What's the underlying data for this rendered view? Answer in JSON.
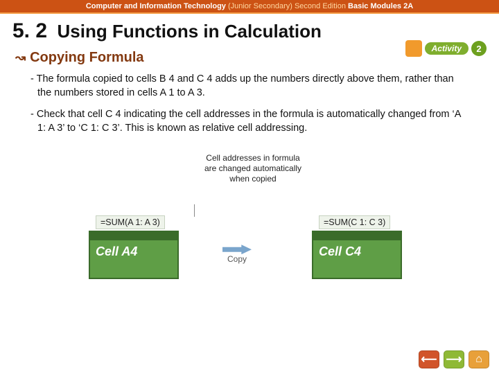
{
  "topbar": {
    "subject": "Computer and Information Technology",
    "level": "(Junior Secondary)",
    "edition": "Second Edition",
    "module": "Basic Modules 2A"
  },
  "section": {
    "number": "5. 2",
    "title": "Using Functions in Calculation"
  },
  "activity": {
    "label": "Activity",
    "number": "2"
  },
  "subheading": {
    "arrow": "↝",
    "text": "Copying Formula"
  },
  "paragraphs": {
    "p1": "- The formula copied to cells B 4 and C 4 adds up the numbers directly above them, rather than the numbers stored in cells A 1 to A 3.",
    "p2": "- Check that cell C 4 indicating the cell addresses in the formula is automatically changed from ‘A 1: A 3’ to ‘C 1: C 3’. This is known as relative cell addressing."
  },
  "diagram": {
    "callout": "Cell addresses in formula are changed automatically when copied",
    "formula_left": "=SUM(A 1: A 3)",
    "formula_right": "=SUM(C 1: C 3)",
    "cell_left_label": "Cell A4",
    "cell_right_label": "Cell C4",
    "copy_label": "Copy",
    "colors": {
      "cell_fill": "#5f9e46",
      "cell_border": "#3a6b2a",
      "arrow": "#7aa5cc",
      "formula_bg": "#eef3ea"
    }
  },
  "nav": {
    "back": "⟵",
    "forward": "⟶",
    "home": "⌂"
  }
}
